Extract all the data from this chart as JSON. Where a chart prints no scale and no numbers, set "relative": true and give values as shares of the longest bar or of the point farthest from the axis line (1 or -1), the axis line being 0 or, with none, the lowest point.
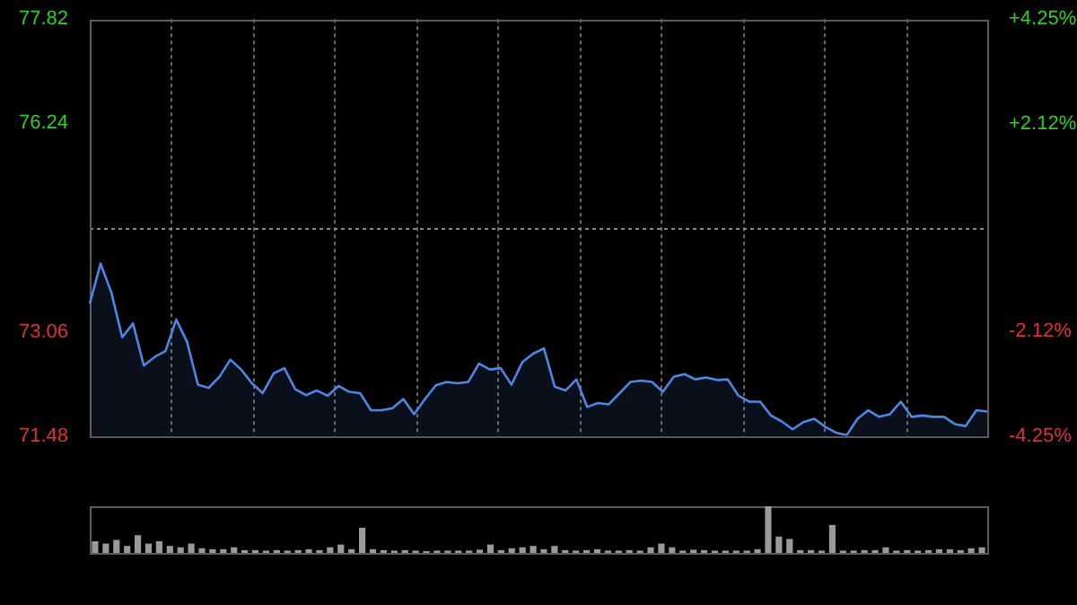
{
  "chart_data": [
    {
      "type": "area",
      "categories": [
        null,
        null,
        null,
        null,
        null,
        null,
        null,
        null,
        null,
        null,
        null,
        null,
        null,
        null,
        null,
        null,
        null,
        null,
        null,
        null,
        null,
        null,
        null,
        null,
        null,
        null,
        null,
        null,
        null,
        null,
        null,
        null,
        null,
        null,
        null,
        null,
        null,
        null,
        null,
        null,
        null,
        null,
        null,
        null,
        null,
        null,
        null,
        null,
        null,
        null,
        null,
        null,
        null,
        null,
        null,
        null,
        null,
        null,
        null,
        null,
        null,
        null,
        null,
        null,
        null,
        null,
        null,
        null,
        null,
        null,
        null,
        null,
        null,
        null,
        null,
        null,
        null,
        null,
        null,
        null,
        null,
        null,
        null,
        null
      ],
      "series": [
        {
          "color": "#4f86e0",
          "values": [
            73.49,
            74.1,
            73.66,
            72.98,
            73.19,
            72.55,
            72.68,
            72.77,
            73.25,
            72.91,
            72.26,
            72.21,
            72.38,
            72.64,
            72.49,
            72.28,
            72.13,
            72.43,
            72.51,
            72.19,
            72.1,
            72.17,
            72.09,
            72.24,
            72.15,
            72.13,
            71.87,
            71.87,
            71.9,
            72.04,
            71.81,
            72.04,
            72.25,
            72.3,
            72.28,
            72.3,
            72.58,
            72.49,
            72.51,
            72.26,
            72.6,
            72.73,
            72.81,
            72.23,
            72.17,
            72.34,
            71.92,
            71.98,
            71.96,
            72.13,
            72.3,
            72.32,
            72.3,
            72.15,
            72.38,
            72.42,
            72.34,
            72.37,
            72.33,
            72.34,
            72.09,
            72.0,
            72.0,
            71.79,
            71.7,
            71.58,
            71.69,
            71.74,
            71.62,
            71.53,
            71.49,
            71.74,
            71.87,
            71.77,
            71.81,
            72.0,
            71.77,
            71.79,
            71.77,
            71.77,
            71.66,
            71.63,
            71.87,
            71.85
          ]
        }
      ],
      "ylim": [
        71.48,
        77.82
      ],
      "yticks": [
        77.82,
        76.24,
        73.06,
        71.48
      ],
      "y2lim": [
        -4.25,
        4.25
      ],
      "y2ticks": [
        {
          "value": 4.25,
          "label": "+4.25%"
        },
        {
          "value": 2.12,
          "label": "+2.12%"
        },
        {
          "value": -2.12,
          "label": "-2.12%"
        },
        {
          "value": -4.25,
          "label": "-4.25%"
        }
      ],
      "ref_lines": [
        {
          "axis": "y",
          "value": 74.65,
          "line_style": "dashed"
        }
      ],
      "grid": "x",
      "legend": false
    },
    {
      "type": "bar",
      "relative": true,
      "color": "#9a9a9a",
      "categories": [
        null,
        null,
        null,
        null,
        null,
        null,
        null,
        null,
        null,
        null,
        null,
        null,
        null,
        null,
        null,
        null,
        null,
        null,
        null,
        null,
        null,
        null,
        null,
        null,
        null,
        null,
        null,
        null,
        null,
        null,
        null,
        null,
        null,
        null,
        null,
        null,
        null,
        null,
        null,
        null,
        null,
        null,
        null,
        null,
        null,
        null,
        null,
        null,
        null,
        null,
        null,
        null,
        null,
        null,
        null,
        null,
        null,
        null,
        null,
        null,
        null,
        null,
        null,
        null,
        null,
        null,
        null,
        null,
        null,
        null,
        null,
        null,
        null,
        null,
        null,
        null,
        null,
        null,
        null,
        null,
        null,
        null,
        null,
        null
      ],
      "values": [
        0.25,
        0.2,
        0.28,
        0.15,
        0.38,
        0.2,
        0.25,
        0.15,
        0.12,
        0.2,
        0.1,
        0.08,
        0.08,
        0.12,
        0.06,
        0.06,
        0.05,
        0.06,
        0.05,
        0.06,
        0.08,
        0.06,
        0.12,
        0.18,
        0.08,
        0.54,
        0.08,
        0.06,
        0.05,
        0.06,
        0.05,
        0.04,
        0.05,
        0.05,
        0.05,
        0.05,
        0.07,
        0.18,
        0.06,
        0.1,
        0.12,
        0.15,
        0.08,
        0.15,
        0.06,
        0.05,
        0.06,
        0.08,
        0.05,
        0.05,
        0.06,
        0.05,
        0.12,
        0.2,
        0.12,
        0.05,
        0.07,
        0.06,
        0.05,
        0.05,
        0.05,
        0.05,
        0.08,
        1,
        0.35,
        0.3,
        0.06,
        0.06,
        0.05,
        0.6,
        0.05,
        0.05,
        0.06,
        0.06,
        0.12,
        0.05,
        0.06,
        0.05,
        0.06,
        0.08,
        0.08,
        0.06,
        0.1,
        0.12
      ],
      "legend": false
    }
  ]
}
